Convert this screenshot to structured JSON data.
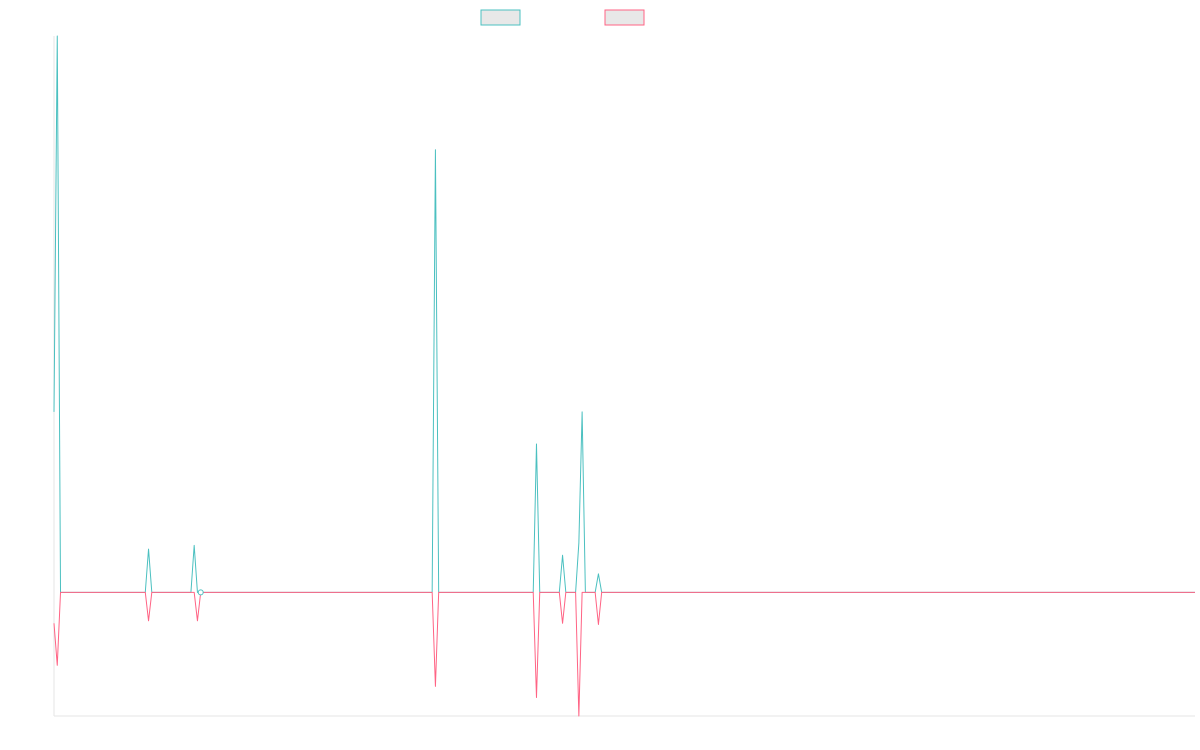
{
  "chart_data": {
    "type": "line",
    "title": "",
    "xlabel": "",
    "ylabel": "",
    "grid": false,
    "legend": {
      "placement": "top-center",
      "entries": [
        {
          "label": "",
          "color": "#4bc0c0"
        },
        {
          "label": "",
          "color": "#ff6384"
        }
      ]
    },
    "ylim": [
      -100,
      450
    ],
    "x": [
      0,
      1,
      2,
      3,
      4,
      5,
      6,
      7,
      8,
      9,
      10,
      11,
      12,
      13,
      14,
      15,
      16,
      17,
      18,
      19,
      20,
      21,
      22,
      23,
      24,
      25,
      26,
      27,
      28,
      29,
      30,
      31,
      32,
      33,
      34,
      35,
      36,
      37,
      38,
      39,
      40,
      41,
      42,
      43,
      44,
      45,
      46,
      47,
      48,
      49,
      50,
      51,
      52,
      53,
      54,
      55,
      56,
      57,
      58,
      59,
      60,
      61,
      62,
      63,
      64,
      65,
      66,
      67,
      67.5,
      68,
      68.5,
      69,
      70,
      71,
      72,
      73,
      74,
      75,
      75.5,
      76,
      76.5,
      77,
      78,
      79,
      80,
      81,
      82,
      83,
      84,
      85,
      86,
      87,
      88,
      89,
      90,
      91,
      92,
      93,
      94,
      95,
      96,
      97,
      98,
      99,
      100,
      101,
      102,
      103,
      104,
      105,
      106,
      107,
      108,
      109,
      110,
      111,
      112,
      113,
      114,
      115,
      116,
      117,
      118,
      119,
      120,
      121,
      122,
      123,
      124,
      125,
      126,
      127,
      128,
      129,
      130,
      131,
      132,
      133,
      134,
      135,
      136,
      137,
      138,
      139,
      140,
      141,
      142,
      143,
      144,
      145,
      146,
      147,
      148,
      149,
      150,
      151,
      152,
      153,
      154,
      155,
      156,
      157,
      158,
      159,
      160,
      161,
      162,
      163,
      164,
      165,
      166,
      167,
      168,
      169,
      170,
      171,
      172,
      173,
      174,
      175,
      176,
      177,
      178,
      179,
      180,
      181,
      182,
      183,
      184,
      185,
      186,
      187,
      188,
      189,
      190,
      191,
      192,
      193,
      194,
      195,
      196,
      197,
      198,
      199,
      200,
      201,
      202,
      203,
      204,
      205,
      206,
      207,
      208,
      209,
      210,
      211,
      212,
      213,
      214,
      215,
      216,
      217,
      218,
      219,
      220,
      221,
      222,
      223,
      224,
      225,
      226,
      227,
      228,
      229,
      230,
      231,
      232,
      233,
      234,
      235,
      236,
      237,
      238,
      239,
      240,
      241,
      242,
      243,
      244,
      245,
      246,
      247,
      248,
      249,
      250,
      251,
      252,
      253,
      254,
      255,
      256,
      257,
      258,
      259,
      260,
      261,
      262,
      263,
      264,
      265,
      266,
      267,
      268,
      269,
      270,
      271,
      272,
      273,
      274,
      275,
      276,
      277,
      278,
      279,
      280,
      281,
      282,
      283,
      284,
      285,
      286,
      287,
      288,
      289,
      290,
      291,
      292,
      293,
      294,
      295,
      296,
      297,
      298,
      299,
      300,
      301,
      302,
      303,
      304,
      305,
      306,
      307,
      308,
      309,
      310,
      311,
      312,
      313,
      314,
      315,
      316,
      317,
      318,
      319,
      320,
      321,
      322,
      323,
      324,
      325,
      326,
      327,
      328,
      329,
      330,
      331,
      332,
      333,
      334,
      335,
      336,
      337,
      338,
      339,
      340,
      341,
      342,
      343,
      344,
      345,
      346,
      347,
      348,
      349,
      350
    ],
    "series": [
      {
        "name": "",
        "color": "#4bc0c0",
        "points": [
          [
            0,
            146
          ],
          [
            1,
            450
          ],
          [
            2,
            0
          ],
          [
            28,
            0
          ],
          [
            29,
            35
          ],
          [
            30,
            0
          ],
          [
            42,
            0
          ],
          [
            43,
            38
          ],
          [
            44,
            0
          ],
          [
            53,
            0
          ],
          [
            54,
            0
          ],
          [
            55,
            0
          ],
          [
            116,
            0
          ],
          [
            117,
            358
          ],
          [
            118,
            0
          ],
          [
            147,
            0
          ],
          [
            148,
            120
          ],
          [
            149,
            0
          ],
          [
            155,
            0
          ],
          [
            156,
            30
          ],
          [
            157,
            0
          ],
          [
            160,
            0
          ],
          [
            161,
            40
          ],
          [
            162,
            146
          ],
          [
            163,
            0
          ],
          [
            166,
            0
          ],
          [
            167,
            15
          ],
          [
            168,
            0
          ],
          [
            350,
            0
          ]
        ]
      },
      {
        "name": "",
        "color": "#ff6384",
        "points": [
          [
            0,
            -25
          ],
          [
            1,
            -59
          ],
          [
            2,
            0
          ],
          [
            28,
            0
          ],
          [
            29,
            -23
          ],
          [
            30,
            0
          ],
          [
            43,
            0
          ],
          [
            44,
            -23
          ],
          [
            45,
            0
          ],
          [
            116,
            0
          ],
          [
            117,
            -76
          ],
          [
            118,
            0
          ],
          [
            147,
            0
          ],
          [
            148,
            -85
          ],
          [
            149,
            0
          ],
          [
            155,
            0
          ],
          [
            156,
            -25
          ],
          [
            157,
            0
          ],
          [
            160,
            0
          ],
          [
            161,
            -100
          ],
          [
            162,
            0
          ],
          [
            166,
            0
          ],
          [
            167,
            -26
          ],
          [
            168,
            0
          ],
          [
            350,
            0
          ]
        ]
      }
    ]
  }
}
